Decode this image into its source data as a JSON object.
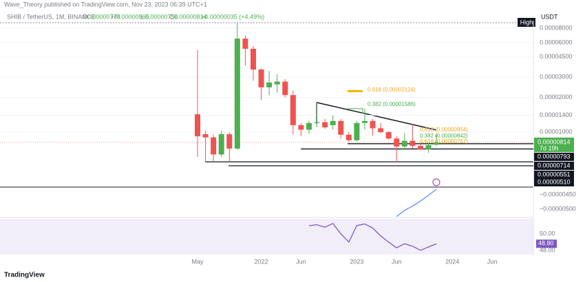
{
  "header": {
    "byline": "Wave_Theory published on TradingView.com, Nov 23, 2023 06:39 UTC+1",
    "fields": [
      "O",
      "H",
      "L",
      "C"
    ],
    "change": "+0.00000035 (+4.49%)"
  },
  "footer": {
    "brand": "TradingView"
  },
  "chart_data": {
    "type": "candlestick",
    "title": "SHIB / TetherUS, 1M, BINANCE",
    "currency": "USDT",
    "high_label": "High",
    "countdown": "7d 19h",
    "categories": [
      "May",
      null,
      null,
      null,
      null,
      null,
      null,
      null,
      "2022",
      null,
      null,
      null,
      null,
      "Jun",
      null,
      null,
      null,
      null,
      null,
      null,
      "2023",
      null,
      null,
      null,
      null,
      "Jun",
      null,
      null,
      null,
      null,
      null,
      null,
      "2024",
      null,
      null,
      null,
      null,
      "Jun"
    ],
    "open": [
      1.43e-05,
      9.6e-06,
      9e-06,
      6.4e-06,
      9.6e-06,
      7.2e-06,
      6.5e-05,
      5.3e-05,
      3.5e-05,
      2.45e-05,
      2.6e-05,
      2.75e-05,
      2.1e-05,
      1.15e-05,
      1.05e-05,
      1.2e-05,
      1.22e-05,
      1.15e-05,
      1.25e-05,
      9.5e-06,
      8.5e-06,
      1.2e-05,
      1.25e-05,
      1.08e-05,
      1e-05,
      8.8e-06,
      7.5e-06,
      8.4e-06,
      7.6e-06,
      7.1e-06,
      7.78e-06,
      null,
      null,
      null,
      null,
      null,
      null,
      null
    ],
    "high": [
      5.2e-05,
      1.03e-05,
      9.5e-06,
      1.03e-05,
      1e-05,
      8.9e-05,
      6.9e-05,
      5.6e-05,
      3.6e-05,
      3.4e-05,
      3.2e-05,
      2.9e-05,
      2.3e-05,
      1.2e-05,
      1.25e-05,
      1.75e-05,
      1.3e-05,
      1.4e-05,
      1.3e-05,
      1e-05,
      1.25e-05,
      1.6e-05,
      1.3e-05,
      1.2e-05,
      1.02e-05,
      9.2e-06,
      9.8e-06,
      1.18e-05,
      8e-06,
      8e-06,
      9.65e-06,
      null,
      null,
      null,
      null,
      null,
      null,
      null
    ],
    "low": [
      6.1e-06,
      5.45e-06,
      5.45e-06,
      6.1e-06,
      5.5e-06,
      7e-06,
      3.8e-05,
      2.8e-05,
      1.9e-05,
      2.1e-05,
      2.2e-05,
      2e-05,
      9.5e-06,
      9.2e-06,
      9.7e-06,
      1.1e-05,
      1.07e-05,
      1.05e-05,
      8.8e-06,
      8.2e-06,
      8.3e-06,
      1.05e-05,
      9.3e-06,
      9.8e-06,
      8.6e-06,
      5.5e-06,
      7.1e-06,
      7.2e-06,
      7e-06,
      6.6e-06,
      7.56e-06,
      null,
      null,
      null,
      null,
      null,
      null,
      null
    ],
    "close": [
      9.2e-06,
      9e-06,
      6.4e-06,
      9.6e-06,
      7.2e-06,
      6.5e-05,
      5.3e-05,
      3.5e-05,
      2.45e-05,
      2.7e-05,
      2.75e-05,
      2.1e-05,
      1.15e-05,
      1.05e-05,
      1.2e-05,
      1.22e-05,
      1.1e-05,
      1.25e-05,
      9.5e-06,
      8.5e-06,
      1.2e-05,
      1.25e-05,
      1.08e-05,
      1e-05,
      8.8e-06,
      7.5e-06,
      8.4e-06,
      7.6e-06,
      7.1e-06,
      7.7e-06,
      8.14e-06,
      null,
      null,
      null,
      null,
      null,
      null,
      null
    ],
    "up_color": "#4caf50",
    "down_color": "#ef5350",
    "log_scale": true,
    "ylim": [
      3.33e-06,
      9.31e-05
    ],
    "yticks": [
      {
        "value": 8e-05,
        "label": "0.00008000"
      },
      {
        "value": 6e-05,
        "label": "0.00006000"
      },
      {
        "value": 4.5e-05,
        "label": "0.00004500"
      },
      {
        "value": 3e-05,
        "label": "0.00003000"
      },
      {
        "value": 2e-05,
        "label": "0.00002000"
      },
      {
        "value": 1.4e-05,
        "label": "0.00001400"
      },
      {
        "value": 1e-05,
        "label": "0.00001000"
      }
    ],
    "levels": [
      {
        "value": 7.93e-06,
        "label": "0.00000793"
      },
      {
        "value": 7.14e-06,
        "label": "0.00000714"
      },
      {
        "value": 5.51e-06,
        "label": "0.00000551"
      },
      {
        "value": 5.1e-06,
        "label": "0.00000510"
      }
    ],
    "fib_labels": [
      "0.618 (0.00002124)",
      "0.382 (0.00001586)",
      "0.618 (0.00000954)",
      "0.382 (0.00000842)",
      "0.618 (0.00000757)"
    ],
    "indicator": {
      "color": "#5b8ff9",
      "ylim": [
        -5.29e-06,
        -4.26e-06
      ],
      "yticks": [
        {
          "value": -4.5e-06,
          "label": "−0.00000450"
        },
        {
          "value": -5e-06,
          "label": "−0.00000500"
        }
      ],
      "values": [
        null,
        null,
        null,
        null,
        null,
        null,
        null,
        null,
        null,
        null,
        null,
        null,
        null,
        null,
        null,
        null,
        null,
        null,
        null,
        null,
        null,
        null,
        null,
        null,
        null,
        -5.26e-06,
        -5.05e-06,
        -4.9e-06,
        -4.72e-06,
        -4.52e-06,
        -4.31e-06,
        null,
        null,
        null,
        null,
        null,
        null,
        null
      ]
    },
    "rsi": {
      "color": "#7e57c2",
      "ylim": [
        47.33,
        51.83
      ],
      "yticks": [
        {
          "value": 50,
          "label": "50.00"
        },
        {
          "value": 48,
          "label": "48.00"
        }
      ],
      "last_label": "48.80",
      "values": [
        null,
        null,
        null,
        null,
        null,
        null,
        null,
        null,
        null,
        null,
        null,
        null,
        null,
        null,
        51.0,
        51.1,
        50.8,
        51.25,
        50.0,
        49.0,
        51.0,
        51.2,
        50.7,
        49.75,
        49.0,
        48.3,
        48.8,
        48.5,
        48.0,
        48.4,
        48.8,
        null,
        null,
        null,
        null,
        null,
        null,
        null
      ]
    }
  }
}
